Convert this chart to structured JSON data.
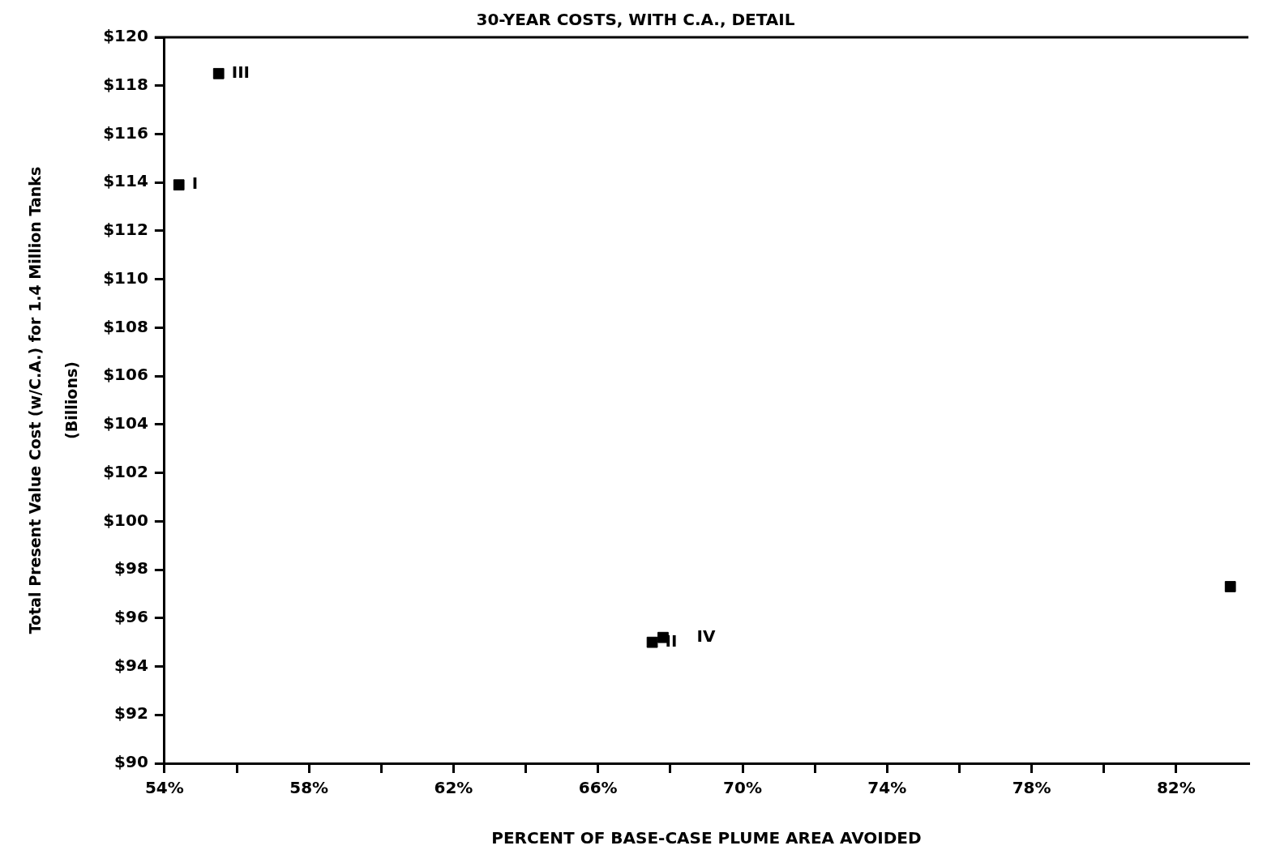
{
  "chart_data": {
    "type": "scatter",
    "title": "30-YEAR COSTS, WITH C.A., DETAIL",
    "xlabel": "PERCENT OF BASE-CASE PLUME AREA AVOIDED",
    "ylabel": "Total Present Value Cost (w/C.A.) for 1.4 Million Tanks\n(Billions)",
    "series": [
      {
        "color": "#000000",
        "x": [
          54.4,
          55.5,
          67.5,
          67.8,
          83.5
        ],
        "values": [
          113.9,
          118.5,
          95.0,
          95.2,
          97.3
        ]
      }
    ],
    "annotations": [
      {
        "text": "I",
        "x": 54.4,
        "y": 113.9
      },
      {
        "text": "III",
        "x": 55.5,
        "y": 118.5
      },
      {
        "text": "II",
        "x": 67.5,
        "y": 95.0
      },
      {
        "text": "IV",
        "x": 67.8,
        "y": 95.2
      }
    ],
    "xlim": [
      54,
      84
    ],
    "xticks": [
      {
        "value": 54,
        "label": "54%"
      },
      {
        "value": 56,
        "label": null
      },
      {
        "value": 58,
        "label": "58%"
      },
      {
        "value": 60,
        "label": null
      },
      {
        "value": 62,
        "label": "62%"
      },
      {
        "value": 64,
        "label": null
      },
      {
        "value": 66,
        "label": "66%"
      },
      {
        "value": 68,
        "label": null
      },
      {
        "value": 70,
        "label": "70%"
      },
      {
        "value": 72,
        "label": null
      },
      {
        "value": 74,
        "label": "74%"
      },
      {
        "value": 76,
        "label": null
      },
      {
        "value": 78,
        "label": "78%"
      },
      {
        "value": 80,
        "label": null
      },
      {
        "value": 82,
        "label": "82%"
      }
    ],
    "ylim": [
      90,
      120
    ],
    "yticks": [
      {
        "value": 90,
        "label": "$90"
      },
      {
        "value": 92,
        "label": "$92"
      },
      {
        "value": 94,
        "label": "$94"
      },
      {
        "value": 96,
        "label": "$96"
      },
      {
        "value": 98,
        "label": "$98"
      },
      {
        "value": 100,
        "label": "$100"
      },
      {
        "value": 102,
        "label": "$102"
      },
      {
        "value": 104,
        "label": "$104"
      },
      {
        "value": 106,
        "label": "$106"
      },
      {
        "value": 108,
        "label": "$108"
      },
      {
        "value": 110,
        "label": "$110"
      },
      {
        "value": 112,
        "label": "$112"
      },
      {
        "value": 114,
        "label": "$114"
      },
      {
        "value": 116,
        "label": "$116"
      },
      {
        "value": 118,
        "label": "$118"
      },
      {
        "value": 120,
        "label": "$120"
      }
    ],
    "grid": false,
    "legend": false,
    "marker": "square"
  }
}
